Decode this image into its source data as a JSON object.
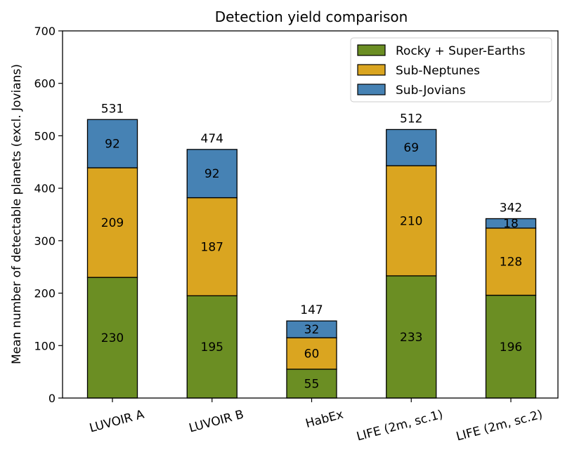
{
  "chart_data": {
    "type": "bar",
    "stacked": true,
    "title": "Detection yield comparison",
    "xlabel": "",
    "ylabel": "Mean number of detectable planets (excl. Jovians)",
    "ylim": [
      0,
      700
    ],
    "yticks": [
      0,
      100,
      200,
      300,
      400,
      500,
      600,
      700
    ],
    "categories": [
      "LUVOIR A",
      "LUVOIR B",
      "HabEx",
      "LIFE (2m, sc.1)",
      "LIFE (2m, sc.2)"
    ],
    "series": [
      {
        "name": "Rocky + Super-Earths",
        "color": "#6b8e23",
        "values": [
          230,
          195,
          55,
          233,
          196
        ]
      },
      {
        "name": "Sub-Neptunes",
        "color": "#daa520",
        "values": [
          209,
          187,
          60,
          210,
          128
        ]
      },
      {
        "name": "Sub-Jovians",
        "color": "#4682b4",
        "values": [
          92,
          92,
          32,
          69,
          18
        ]
      }
    ],
    "totals": [
      531,
      474,
      147,
      512,
      342
    ],
    "legend": "top-right",
    "grid": false
  }
}
